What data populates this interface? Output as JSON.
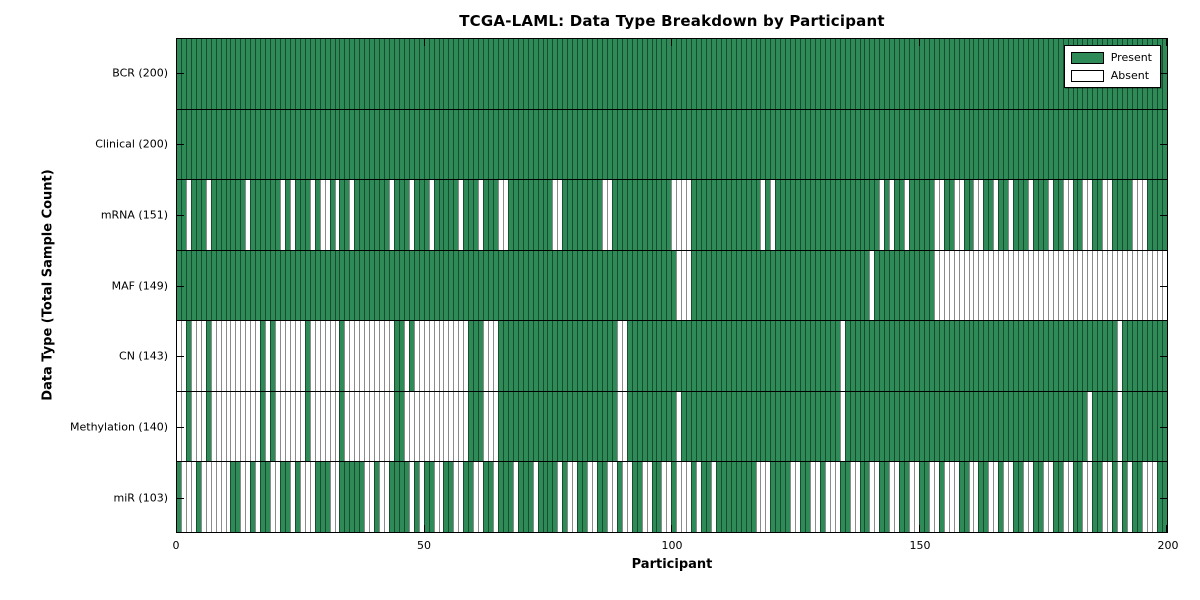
{
  "title": "TCGA-LAML: Data Type Breakdown by Participant",
  "xlabel": "Participant",
  "ylabel": "Data Type (Total Sample Count)",
  "legend": {
    "present_label": "Present",
    "absent_label": "Absent"
  },
  "colors": {
    "present": "#2e8b57",
    "absent": "#ffffff",
    "cell_edge": "rgba(0,0,0,0.45)"
  },
  "chart_data": {
    "type": "heatmap",
    "title": "TCGA-LAML: Data Type Breakdown by Participant",
    "xlabel": "Participant",
    "ylabel": "Data Type (Total Sample Count)",
    "x_range": [
      0,
      200
    ],
    "x_ticks": [
      0,
      50,
      100,
      150,
      200
    ],
    "n_participants": 200,
    "legend_position": "upper right",
    "legend_entries": [
      {
        "label": "Present",
        "color": "#2e8b57"
      },
      {
        "label": "Absent",
        "color": "#ffffff"
      }
    ],
    "rows": [
      {
        "name": "BCR",
        "label": "BCR (200)",
        "total": 200,
        "absent": []
      },
      {
        "name": "Clinical",
        "label": "Clinical (200)",
        "total": 200,
        "absent": []
      },
      {
        "name": "mRNA",
        "label": "mRNA (151)",
        "total": 151,
        "absent": [
          2,
          6,
          14,
          21,
          23,
          27,
          29,
          30,
          32,
          35,
          43,
          47,
          51,
          57,
          61,
          65,
          66,
          76,
          77,
          86,
          87,
          100,
          101,
          102,
          103,
          118,
          120,
          142,
          144,
          147,
          153,
          154,
          157,
          158,
          161,
          162,
          165,
          168,
          172,
          176,
          179,
          180,
          183,
          184,
          187,
          188,
          193,
          194,
          195
        ]
      },
      {
        "name": "MAF",
        "label": "MAF (149)",
        "total": 149,
        "absent": [
          101,
          102,
          103,
          140,
          153,
          154,
          155,
          156,
          157,
          158,
          159,
          160,
          161,
          162,
          163,
          164,
          165,
          166,
          167,
          168,
          169,
          170,
          171,
          172,
          173,
          174,
          175,
          176,
          177,
          178,
          179,
          180,
          181,
          182,
          183,
          184,
          185,
          186,
          187,
          188,
          189,
          190,
          191,
          192,
          193,
          194,
          195,
          196,
          197,
          198,
          199
        ]
      },
      {
        "name": "CN",
        "label": "CN (143)",
        "total": 143,
        "absent": [
          0,
          1,
          3,
          4,
          5,
          7,
          8,
          9,
          10,
          11,
          12,
          13,
          14,
          15,
          16,
          18,
          20,
          21,
          22,
          23,
          24,
          25,
          27,
          28,
          29,
          30,
          31,
          32,
          34,
          35,
          36,
          37,
          38,
          39,
          40,
          41,
          42,
          43,
          46,
          48,
          49,
          50,
          51,
          52,
          53,
          54,
          55,
          56,
          57,
          58,
          62,
          63,
          64,
          89,
          90,
          134,
          190
        ]
      },
      {
        "name": "Methylation",
        "label": "Methylation (140)",
        "total": 140,
        "absent": [
          0,
          1,
          3,
          4,
          5,
          7,
          8,
          9,
          10,
          11,
          12,
          13,
          14,
          15,
          16,
          18,
          20,
          21,
          22,
          23,
          24,
          25,
          27,
          28,
          29,
          30,
          31,
          32,
          34,
          35,
          36,
          37,
          38,
          39,
          40,
          41,
          42,
          43,
          46,
          47,
          48,
          49,
          50,
          51,
          52,
          53,
          54,
          55,
          56,
          57,
          58,
          62,
          63,
          64,
          89,
          90,
          101,
          134,
          184,
          190
        ]
      },
      {
        "name": "miR",
        "label": "miR (103)",
        "total": 103,
        "absent": [
          1,
          2,
          3,
          5,
          6,
          7,
          8,
          9,
          10,
          13,
          14,
          16,
          19,
          20,
          23,
          25,
          26,
          27,
          31,
          32,
          38,
          39,
          41,
          42,
          47,
          49,
          52,
          53,
          56,
          57,
          60,
          61,
          64,
          68,
          72,
          77,
          79,
          80,
          83,
          84,
          87,
          88,
          90,
          91,
          94,
          95,
          98,
          99,
          101,
          102,
          103,
          105,
          108,
          117,
          118,
          119,
          124,
          125,
          128,
          129,
          131,
          132,
          133,
          136,
          137,
          140,
          141,
          144,
          145,
          148,
          149,
          152,
          153,
          155,
          156,
          157,
          160,
          161,
          164,
          165,
          167,
          168,
          171,
          172,
          175,
          176,
          179,
          180,
          183,
          184,
          187,
          188,
          190,
          192,
          195,
          196,
          197
        ]
      }
    ]
  }
}
